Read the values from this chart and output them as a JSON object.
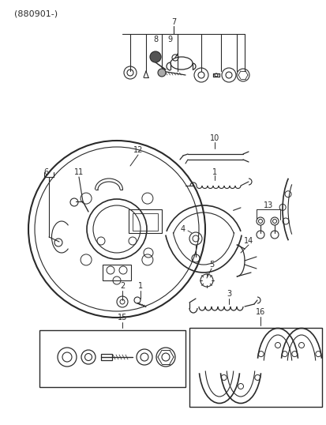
{
  "title": "(880901-)",
  "bg": "#ffffff",
  "lc": "#2a2a2a",
  "figsize": [
    4.14,
    5.38
  ],
  "dpi": 100
}
